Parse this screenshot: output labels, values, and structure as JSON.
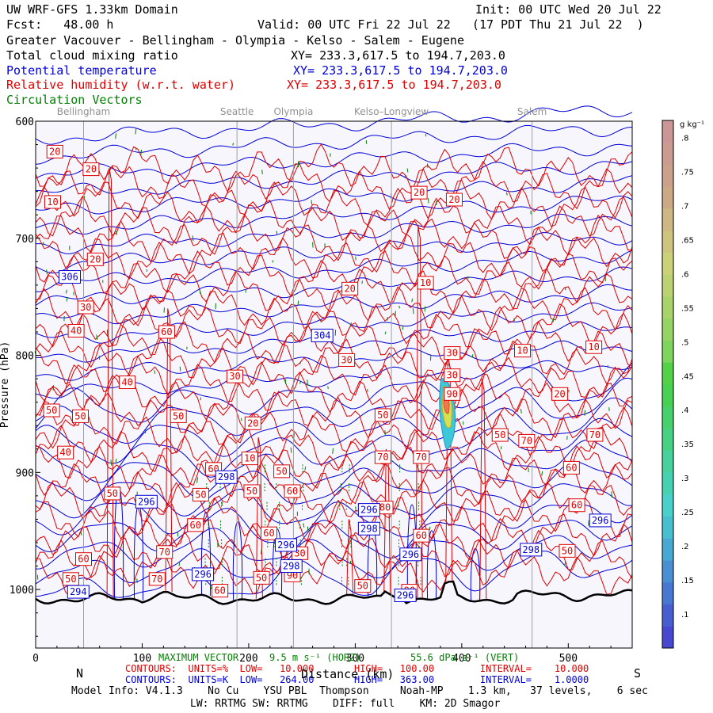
{
  "header": {
    "model_title": "UW WRF-GFS 1.33km Domain",
    "init": "Init: 00 UTC Wed 20 Jul 22",
    "fcst": "Fcst:   48.00 h",
    "valid": "Valid: 00 UTC Fri 22 Jul 22   (17 PDT Thu 21 Jul 22  )",
    "region": "Greater Vacouver - Bellingham - Olympia - Kelso - Salem - Eugene",
    "field_cloud": "Total cloud mixing ratio",
    "xy_cloud": "XY= 233.3,617.5 to 194.7,203.0",
    "field_theta": "Potential temperature",
    "xy_theta": "XY= 233.3,617.5 to 194.7,203.0",
    "field_rh": "Relative humidity (w.r.t. water)",
    "xy_rh": "XY= 233.3,617.5 to 194.7,203.0",
    "field_vectors": "Circulation Vectors"
  },
  "colors": {
    "theta": "#0000d8",
    "rh": "#e00000",
    "vectors": "#008000",
    "terrain": "#000000",
    "background": "#f6f6fc"
  },
  "chart_data": {
    "type": "cross-section",
    "x_axis": {
      "range": [
        0,
        560
      ],
      "ticks": [
        "0",
        "100",
        "200",
        "300",
        "400",
        "500"
      ],
      "tick_values": [
        0,
        100,
        200,
        300,
        400,
        500
      ],
      "label": "Distance (km)",
      "left_end": "N",
      "right_end": "S"
    },
    "y_axis": {
      "range": [
        600,
        1050
      ],
      "ticks": [
        "600",
        "700",
        "800",
        "900",
        "1000"
      ],
      "tick_values": [
        600,
        700,
        800,
        900,
        1000
      ],
      "label": "Pressure (hPa)"
    },
    "locations": [
      {
        "name": "Bellingham",
        "x": 45
      },
      {
        "name": "Seattle",
        "x": 189
      },
      {
        "name": "Olympia",
        "x": 242
      },
      {
        "name": "Kelso–Longview",
        "x": 334
      },
      {
        "name": "Salem",
        "x": 466
      }
    ],
    "theta_contours": {
      "low": 264.0,
      "high": 363.0,
      "interval": 1.0,
      "labels": [
        {
          "text": "306",
          "x": 32,
          "p": 733
        },
        {
          "text": "304",
          "x": 269,
          "p": 783
        },
        {
          "text": "296",
          "x": 104,
          "p": 925
        },
        {
          "text": "298",
          "x": 179,
          "p": 904
        },
        {
          "text": "296",
          "x": 235,
          "p": 962
        },
        {
          "text": "298",
          "x": 240,
          "p": 980
        },
        {
          "text": "296",
          "x": 157,
          "p": 987
        },
        {
          "text": "294",
          "x": 40,
          "p": 1002
        },
        {
          "text": "296",
          "x": 313,
          "p": 932
        },
        {
          "text": "298",
          "x": 313,
          "p": 948
        },
        {
          "text": "296",
          "x": 352,
          "p": 970
        },
        {
          "text": "296",
          "x": 347,
          "p": 1005
        },
        {
          "text": "298",
          "x": 465,
          "p": 966
        },
        {
          "text": "296",
          "x": 530,
          "p": 941
        }
      ]
    },
    "rh_contours": {
      "low": 10.0,
      "high": 100.0,
      "interval": 10.0,
      "labels": [
        {
          "text": "20",
          "x": 18,
          "p": 626
        },
        {
          "text": "20",
          "x": 52,
          "p": 641
        },
        {
          "text": "10",
          "x": 16,
          "p": 669
        },
        {
          "text": "20",
          "x": 56,
          "p": 718
        },
        {
          "text": "30",
          "x": 47,
          "p": 759
        },
        {
          "text": "40",
          "x": 38,
          "p": 779
        },
        {
          "text": "60",
          "x": 123,
          "p": 780
        },
        {
          "text": "40",
          "x": 86,
          "p": 823
        },
        {
          "text": "50",
          "x": 15,
          "p": 847
        },
        {
          "text": "50",
          "x": 42,
          "p": 852
        },
        {
          "text": "50",
          "x": 134,
          "p": 852
        },
        {
          "text": "40",
          "x": 28,
          "p": 883
        },
        {
          "text": "50",
          "x": 72,
          "p": 918
        },
        {
          "text": "30",
          "x": 187,
          "p": 818
        },
        {
          "text": "20",
          "x": 204,
          "p": 858
        },
        {
          "text": "10",
          "x": 201,
          "p": 888
        },
        {
          "text": "60",
          "x": 167,
          "p": 897
        },
        {
          "text": "50",
          "x": 231,
          "p": 899
        },
        {
          "text": "50",
          "x": 155,
          "p": 919
        },
        {
          "text": "60",
          "x": 150,
          "p": 945
        },
        {
          "text": "50",
          "x": 203,
          "p": 916
        },
        {
          "text": "60",
          "x": 241,
          "p": 916
        },
        {
          "text": "60",
          "x": 219,
          "p": 952
        },
        {
          "text": "70",
          "x": 121,
          "p": 968
        },
        {
          "text": "60",
          "x": 45,
          "p": 974
        },
        {
          "text": "50",
          "x": 33,
          "p": 991
        },
        {
          "text": "70",
          "x": 114,
          "p": 991
        },
        {
          "text": "60",
          "x": 173,
          "p": 1001
        },
        {
          "text": "50",
          "x": 212,
          "p": 990
        },
        {
          "text": "30",
          "x": 248,
          "p": 969
        },
        {
          "text": "90",
          "x": 241,
          "p": 988
        },
        {
          "text": "20",
          "x": 295,
          "p": 743
        },
        {
          "text": "30",
          "x": 292,
          "p": 804
        },
        {
          "text": "20",
          "x": 360,
          "p": 661
        },
        {
          "text": "20",
          "x": 393,
          "p": 667
        },
        {
          "text": "10",
          "x": 366,
          "p": 738
        },
        {
          "text": "50",
          "x": 326,
          "p": 851
        },
        {
          "text": "70",
          "x": 326,
          "p": 887
        },
        {
          "text": "70",
          "x": 362,
          "p": 887
        },
        {
          "text": "80",
          "x": 328,
          "p": 930
        },
        {
          "text": "60",
          "x": 362,
          "p": 954
        },
        {
          "text": "50",
          "x": 307,
          "p": 997
        },
        {
          "text": "90",
          "x": 351,
          "p": 1001
        },
        {
          "text": "30",
          "x": 391,
          "p": 798
        },
        {
          "text": "30",
          "x": 391,
          "p": 817
        },
        {
          "text": "90",
          "x": 391,
          "p": 833
        },
        {
          "text": "10",
          "x": 457,
          "p": 796
        },
        {
          "text": "10",
          "x": 524,
          "p": 793
        },
        {
          "text": "20",
          "x": 492,
          "p": 833
        },
        {
          "text": "50",
          "x": 436,
          "p": 868
        },
        {
          "text": "70",
          "x": 461,
          "p": 873
        },
        {
          "text": "70",
          "x": 525,
          "p": 868
        },
        {
          "text": "60",
          "x": 503,
          "p": 896
        },
        {
          "text": "60",
          "x": 508,
          "p": 928
        },
        {
          "text": "50",
          "x": 499,
          "p": 967
        }
      ]
    },
    "cloud_mixing_ratio": {
      "units": "g kg⁻¹",
      "levels": [
        ".1",
        ".15",
        ".2",
        ".25",
        ".3",
        ".35",
        ".4",
        ".45",
        ".5",
        ".55",
        ".6",
        ".65",
        ".7",
        ".75",
        ".8"
      ],
      "max_region": {
        "x": 386,
        "p": 840
      }
    },
    "vectors": {
      "max_horizontal": "9.5 m s⁻¹ (HORZ)",
      "max_vertical": "55.6 dPa s⁻¹ (VERT)"
    }
  },
  "footer": {
    "max_vector_label": "MAXIMUM VECTOR",
    "horz": "9.5 m s⁻¹ (HORZ)",
    "vert": "55.6 dPa s⁻¹ (VERT)",
    "contours_rh": "CONTOURS:  UNITS=%  LOW=   10.000       HIGH=   100.00        INTERVAL=    10.000",
    "contours_theta": "CONTOURS:  UNITS=K  LOW=   264.00       HIGH=   363.00        INTERVAL=    1.0000",
    "xlabel": "Distance (km)",
    "model_info": "Model Info: V4.1.3    No Cu    YSU PBL  Thompson     Noah-MP    1.3 km,   37 levels,    6 sec",
    "schemes": "LW: RRTMG SW: RRTMG    DIFF: full    KM: 2D Smagor"
  }
}
